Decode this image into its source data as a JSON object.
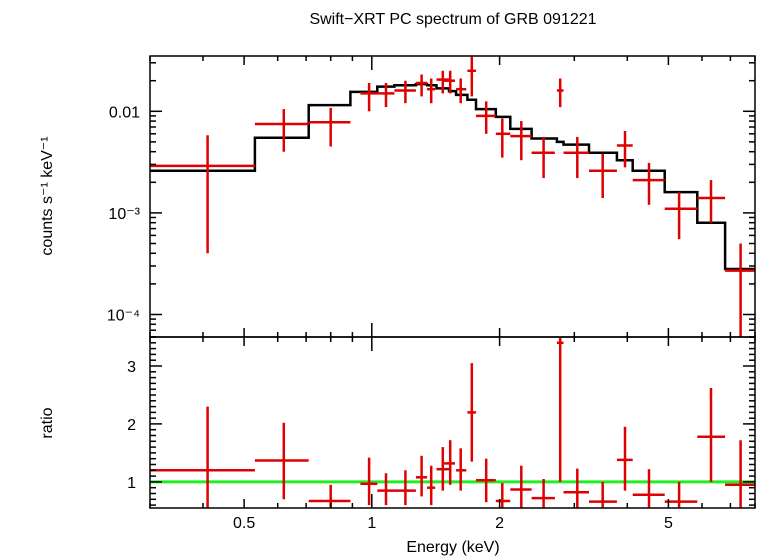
{
  "chart_data": [
    {
      "type": "scatter",
      "panel": "spectrum",
      "title": "Swift−XRT PC spectrum of GRB 091221",
      "xlabel": "",
      "ylabel": "counts s⁻¹ keV⁻¹",
      "xscale": "log",
      "yscale": "log",
      "xlim": [
        0.3,
        8.0
      ],
      "ylim": [
        6e-05,
        0.035
      ],
      "yticks": [
        {
          "value": 0.01,
          "label": "0.01"
        },
        {
          "value": 0.001,
          "label": "10⁻³"
        },
        {
          "value": 0.0001,
          "label": "10⁻⁴"
        }
      ],
      "series": [
        {
          "kind": "data",
          "color": "#e00000",
          "points": [
            {
              "x": 0.41,
              "xlo": 0.3,
              "xhi": 0.53,
              "y": 0.0029,
              "ylo": 0.0004,
              "yhi": 0.0058
            },
            {
              "x": 0.62,
              "xlo": 0.53,
              "xhi": 0.71,
              "y": 0.0075,
              "ylo": 0.004,
              "yhi": 0.0105
            },
            {
              "x": 0.8,
              "xlo": 0.71,
              "xhi": 0.89,
              "y": 0.0078,
              "ylo": 0.0045,
              "yhi": 0.0108
            },
            {
              "x": 0.985,
              "xlo": 0.94,
              "xhi": 1.03,
              "y": 0.015,
              "ylo": 0.01,
              "yhi": 0.019
            },
            {
              "x": 1.08,
              "xlo": 1.03,
              "xhi": 1.13,
              "y": 0.015,
              "ylo": 0.011,
              "yhi": 0.019
            },
            {
              "x": 1.2,
              "xlo": 1.13,
              "xhi": 1.27,
              "y": 0.016,
              "ylo": 0.012,
              "yhi": 0.02
            },
            {
              "x": 1.31,
              "xlo": 1.27,
              "xhi": 1.35,
              "y": 0.019,
              "ylo": 0.014,
              "yhi": 0.023
            },
            {
              "x": 1.38,
              "xlo": 1.35,
              "xhi": 1.41,
              "y": 0.0165,
              "ylo": 0.012,
              "yhi": 0.021
            },
            {
              "x": 1.47,
              "xlo": 1.42,
              "xhi": 1.52,
              "y": 0.0205,
              "ylo": 0.015,
              "yhi": 0.025
            },
            {
              "x": 1.53,
              "xlo": 1.48,
              "xhi": 1.57,
              "y": 0.02,
              "ylo": 0.015,
              "yhi": 0.025
            },
            {
              "x": 1.62,
              "xlo": 1.58,
              "xhi": 1.67,
              "y": 0.0165,
              "ylo": 0.012,
              "yhi": 0.021
            },
            {
              "x": 1.72,
              "xlo": 1.68,
              "xhi": 1.76,
              "y": 0.025,
              "ylo": 0.014,
              "yhi": 0.035
            },
            {
              "x": 1.86,
              "xlo": 1.76,
              "xhi": 1.96,
              "y": 0.009,
              "ylo": 0.006,
              "yhi": 0.0125
            },
            {
              "x": 2.03,
              "xlo": 1.96,
              "xhi": 2.12,
              "y": 0.006,
              "ylo": 0.0035,
              "yhi": 0.0085
            },
            {
              "x": 2.25,
              "xlo": 2.12,
              "xhi": 2.38,
              "y": 0.0057,
              "ylo": 0.0033,
              "yhi": 0.008
            },
            {
              "x": 2.54,
              "xlo": 2.38,
              "xhi": 2.7,
              "y": 0.0039,
              "ylo": 0.0022,
              "yhi": 0.0056
            },
            {
              "x": 2.78,
              "xlo": 2.73,
              "xhi": 2.83,
              "y": 0.016,
              "ylo": 0.011,
              "yhi": 0.021
            },
            {
              "x": 3.05,
              "xlo": 2.83,
              "xhi": 3.25,
              "y": 0.0039,
              "ylo": 0.0022,
              "yhi": 0.0056
            },
            {
              "x": 3.5,
              "xlo": 3.25,
              "xhi": 3.78,
              "y": 0.0026,
              "ylo": 0.0014,
              "yhi": 0.0038
            },
            {
              "x": 3.95,
              "xlo": 3.78,
              "xhi": 4.12,
              "y": 0.0046,
              "ylo": 0.0028,
              "yhi": 0.0064
            },
            {
              "x": 4.5,
              "xlo": 4.12,
              "xhi": 4.9,
              "y": 0.0021,
              "ylo": 0.0012,
              "yhi": 0.0031
            },
            {
              "x": 5.3,
              "xlo": 4.9,
              "xhi": 5.85,
              "y": 0.0011,
              "ylo": 0.00055,
              "yhi": 0.0016
            },
            {
              "x": 6.3,
              "xlo": 5.85,
              "xhi": 6.8,
              "y": 0.0014,
              "ylo": 0.0008,
              "yhi": 0.0021
            },
            {
              "x": 7.4,
              "xlo": 6.8,
              "xhi": 8.0,
              "y": 0.00027,
              "ylo": 6e-05,
              "yhi": 0.0005
            }
          ]
        },
        {
          "kind": "model",
          "color": "#000000",
          "bins": [
            {
              "xlo": 0.3,
              "xhi": 0.53,
              "y": 0.0026
            },
            {
              "xlo": 0.53,
              "xhi": 0.71,
              "y": 0.0055
            },
            {
              "xlo": 0.71,
              "xhi": 0.89,
              "y": 0.0115
            },
            {
              "xlo": 0.89,
              "xhi": 1.03,
              "y": 0.0155
            },
            {
              "xlo": 1.03,
              "xhi": 1.13,
              "y": 0.0175
            },
            {
              "xlo": 1.13,
              "xhi": 1.27,
              "y": 0.018
            },
            {
              "xlo": 1.27,
              "xhi": 1.35,
              "y": 0.0185
            },
            {
              "xlo": 1.35,
              "xhi": 1.42,
              "y": 0.018
            },
            {
              "xlo": 1.42,
              "xhi": 1.52,
              "y": 0.0168
            },
            {
              "xlo": 1.52,
              "xhi": 1.58,
              "y": 0.0158
            },
            {
              "xlo": 1.58,
              "xhi": 1.68,
              "y": 0.0145
            },
            {
              "xlo": 1.68,
              "xhi": 1.76,
              "y": 0.013
            },
            {
              "xlo": 1.76,
              "xhi": 1.96,
              "y": 0.0105
            },
            {
              "xlo": 1.96,
              "xhi": 2.12,
              "y": 0.0088
            },
            {
              "xlo": 2.12,
              "xhi": 2.38,
              "y": 0.0067
            },
            {
              "xlo": 2.38,
              "xhi": 2.73,
              "y": 0.0054
            },
            {
              "xlo": 2.73,
              "xhi": 2.83,
              "y": 0.005
            },
            {
              "xlo": 2.83,
              "xhi": 3.25,
              "y": 0.0047
            },
            {
              "xlo": 3.25,
              "xhi": 3.78,
              "y": 0.0039
            },
            {
              "xlo": 3.78,
              "xhi": 4.12,
              "y": 0.0033
            },
            {
              "xlo": 4.12,
              "xhi": 4.9,
              "y": 0.0026
            },
            {
              "xlo": 4.9,
              "xhi": 5.85,
              "y": 0.0016
            },
            {
              "xlo": 5.85,
              "xhi": 6.8,
              "y": 0.0008
            },
            {
              "xlo": 6.8,
              "xhi": 8.0,
              "y": 0.00028
            }
          ]
        }
      ]
    },
    {
      "type": "scatter",
      "panel": "ratio",
      "xlabel": "Energy (keV)",
      "ylabel": "ratio",
      "xscale": "log",
      "yscale": "linear",
      "xlim": [
        0.3,
        8.0
      ],
      "ylim": [
        0.55,
        3.5
      ],
      "xticks": [
        {
          "value": 0.5,
          "label": "0.5"
        },
        {
          "value": 1,
          "label": "1"
        },
        {
          "value": 2,
          "label": "2"
        },
        {
          "value": 5,
          "label": "5"
        }
      ],
      "yticks": [
        {
          "value": 1,
          "label": "1"
        },
        {
          "value": 2,
          "label": "2"
        },
        {
          "value": 3,
          "label": "3"
        }
      ],
      "reference_line": {
        "y": 1.0,
        "color": "#22ee22"
      },
      "series": [
        {
          "kind": "ratio",
          "color": "#e00000",
          "points": [
            {
              "x": 0.41,
              "xlo": 0.3,
              "xhi": 0.53,
              "y": 1.2,
              "ylo": 0.55,
              "yhi": 2.3
            },
            {
              "x": 0.62,
              "xlo": 0.53,
              "xhi": 0.71,
              "y": 1.37,
              "ylo": 0.7,
              "yhi": 2.02
            },
            {
              "x": 0.8,
              "xlo": 0.71,
              "xhi": 0.89,
              "y": 0.67,
              "ylo": 0.55,
              "yhi": 0.95
            },
            {
              "x": 0.985,
              "xlo": 0.94,
              "xhi": 1.03,
              "y": 0.97,
              "ylo": 0.6,
              "yhi": 1.42
            },
            {
              "x": 1.08,
              "xlo": 1.03,
              "xhi": 1.13,
              "y": 0.85,
              "ylo": 0.6,
              "yhi": 1.15
            },
            {
              "x": 1.2,
              "xlo": 1.13,
              "xhi": 1.27,
              "y": 0.85,
              "ylo": 0.6,
              "yhi": 1.2
            },
            {
              "x": 1.31,
              "xlo": 1.27,
              "xhi": 1.35,
              "y": 1.08,
              "ylo": 0.75,
              "yhi": 1.45
            },
            {
              "x": 1.38,
              "xlo": 1.35,
              "xhi": 1.41,
              "y": 0.9,
              "ylo": 0.6,
              "yhi": 1.28
            },
            {
              "x": 1.47,
              "xlo": 1.42,
              "xhi": 1.52,
              "y": 1.22,
              "ylo": 0.85,
              "yhi": 1.6
            },
            {
              "x": 1.53,
              "xlo": 1.48,
              "xhi": 1.57,
              "y": 1.32,
              "ylo": 0.95,
              "yhi": 1.72
            },
            {
              "x": 1.62,
              "xlo": 1.58,
              "xhi": 1.67,
              "y": 1.2,
              "ylo": 0.85,
              "yhi": 1.58
            },
            {
              "x": 1.72,
              "xlo": 1.68,
              "xhi": 1.76,
              "y": 2.2,
              "ylo": 1.35,
              "yhi": 3.05
            },
            {
              "x": 1.86,
              "xlo": 1.76,
              "xhi": 1.96,
              "y": 1.03,
              "ylo": 0.65,
              "yhi": 1.4
            },
            {
              "x": 2.03,
              "xlo": 1.96,
              "xhi": 2.12,
              "y": 0.67,
              "ylo": 0.55,
              "yhi": 0.98
            },
            {
              "x": 2.25,
              "xlo": 2.12,
              "xhi": 2.38,
              "y": 0.87,
              "ylo": 0.55,
              "yhi": 1.28
            },
            {
              "x": 2.54,
              "xlo": 2.38,
              "xhi": 2.7,
              "y": 0.72,
              "ylo": 0.55,
              "yhi": 1.05
            },
            {
              "x": 2.78,
              "xlo": 2.73,
              "xhi": 2.83,
              "y": 3.4,
              "ylo": 1.0,
              "yhi": 3.5
            },
            {
              "x": 3.05,
              "xlo": 2.83,
              "xhi": 3.25,
              "y": 0.82,
              "ylo": 0.55,
              "yhi": 1.23
            },
            {
              "x": 3.5,
              "xlo": 3.25,
              "xhi": 3.78,
              "y": 0.66,
              "ylo": 0.55,
              "yhi": 1.0
            },
            {
              "x": 3.95,
              "xlo": 3.78,
              "xhi": 4.12,
              "y": 1.38,
              "ylo": 0.85,
              "yhi": 1.95
            },
            {
              "x": 4.5,
              "xlo": 4.12,
              "xhi": 4.9,
              "y": 0.78,
              "ylo": 0.55,
              "yhi": 1.22
            },
            {
              "x": 5.3,
              "xlo": 4.9,
              "xhi": 5.85,
              "y": 0.66,
              "ylo": 0.55,
              "yhi": 1.0
            },
            {
              "x": 6.3,
              "xlo": 5.85,
              "xhi": 6.8,
              "y": 1.78,
              "ylo": 1.0,
              "yhi": 2.62
            },
            {
              "x": 7.4,
              "xlo": 6.8,
              "xhi": 8.0,
              "y": 0.95,
              "ylo": 0.55,
              "yhi": 1.72
            }
          ]
        }
      ]
    }
  ]
}
